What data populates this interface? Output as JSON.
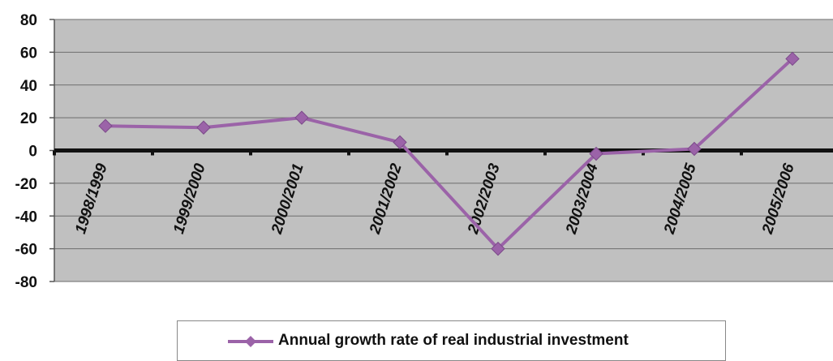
{
  "chart_data": {
    "type": "line",
    "title": "",
    "xlabel": "",
    "ylabel": "",
    "categories": [
      "1998/1999",
      "1999/2000",
      "2000/2001",
      "2001/2002",
      "2002/2003",
      "2003/2004",
      "2004/2005",
      "2005/2006"
    ],
    "series": [
      {
        "name": "Annual growth rate of real industrial investment",
        "values": [
          15,
          14,
          20,
          5,
          -60,
          -2,
          1,
          56
        ],
        "color": "#9b63a8",
        "marker": "diamond"
      }
    ],
    "ylim": [
      -80,
      80
    ],
    "yticks": [
      "80",
      "60",
      "40",
      "20",
      "0",
      "-20",
      "-40",
      "-60",
      "-80"
    ],
    "grid": true,
    "plot_background": "#c0c0c0",
    "legend_position": "bottom"
  }
}
